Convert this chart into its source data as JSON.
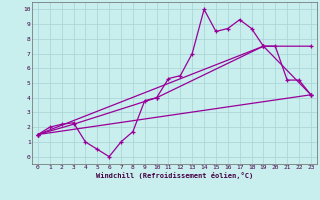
{
  "title": "",
  "xlabel": "Windchill (Refroidissement éolien,°C)",
  "bg_color": "#c8eeee",
  "grid_color": "#a8d4d4",
  "line_color": "#990099",
  "axis_color": "#666666",
  "tick_color": "#440044",
  "xlim": [
    -0.5,
    23.5
  ],
  "ylim": [
    -0.5,
    10.5
  ],
  "xticks": [
    0,
    1,
    2,
    3,
    4,
    5,
    6,
    7,
    8,
    9,
    10,
    11,
    12,
    13,
    14,
    15,
    16,
    17,
    18,
    19,
    20,
    21,
    22,
    23
  ],
  "yticks": [
    0,
    1,
    2,
    3,
    4,
    5,
    6,
    7,
    8,
    9,
    10
  ],
  "line1_x": [
    0,
    1,
    2,
    3,
    4,
    5,
    6,
    7,
    8,
    9,
    10,
    11,
    12,
    13,
    14,
    15,
    16,
    17,
    18,
    19,
    20,
    21,
    22,
    23
  ],
  "line1_y": [
    1.5,
    2.0,
    2.2,
    2.3,
    1.0,
    0.5,
    0.0,
    1.0,
    1.7,
    3.8,
    4.0,
    5.3,
    5.5,
    7.0,
    10.0,
    8.5,
    8.7,
    9.3,
    8.7,
    7.5,
    7.5,
    5.2,
    5.2,
    4.2
  ],
  "line2_x": [
    0,
    3,
    10,
    19,
    23
  ],
  "line2_y": [
    1.5,
    2.2,
    4.0,
    7.5,
    4.2
  ],
  "line3_x": [
    0,
    19,
    23
  ],
  "line3_y": [
    1.5,
    7.5,
    7.5
  ],
  "line4_x": [
    0,
    23
  ],
  "line4_y": [
    1.5,
    4.2
  ]
}
